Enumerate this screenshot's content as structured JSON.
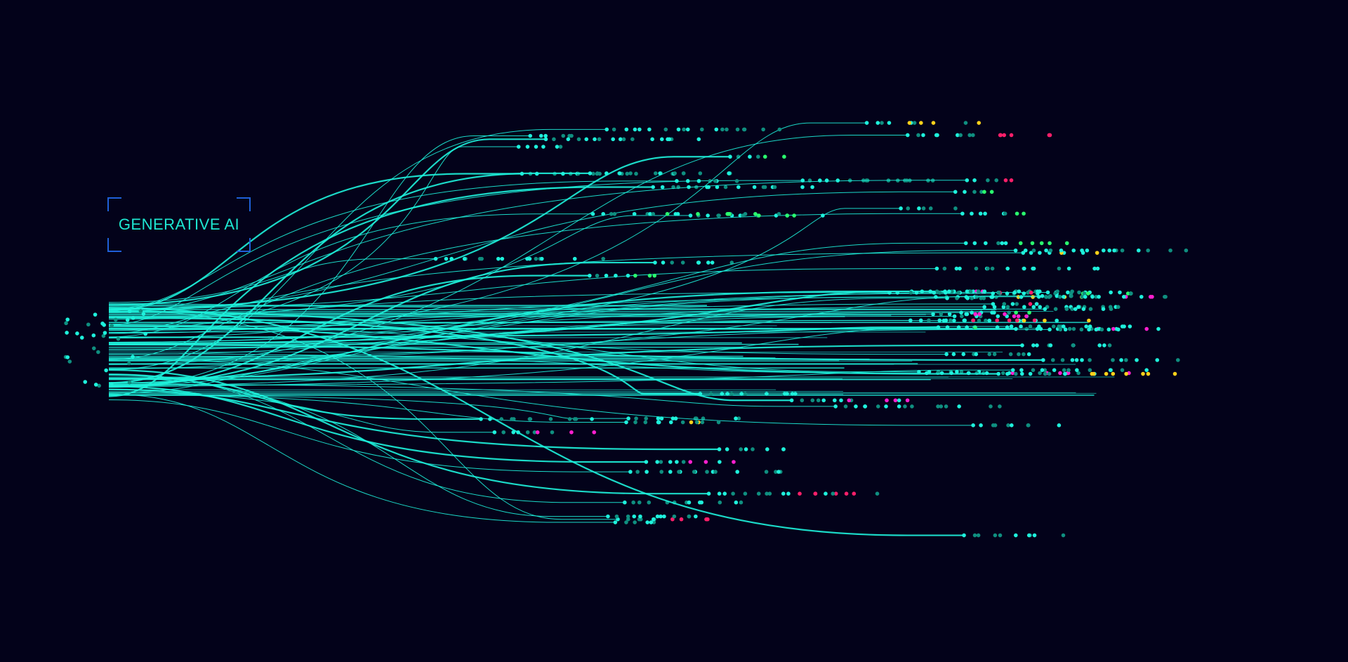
{
  "title": "GENERATIVE AI",
  "colors": {
    "background": "#03021a",
    "line": "#1ef2dc",
    "dot_dim": "#0f8f80",
    "magenta": "#ff1fd0",
    "pink_red": "#ff1f6a",
    "yellow": "#ffd21a",
    "green": "#2aff6e",
    "frame": "#1f5fd8"
  }
}
